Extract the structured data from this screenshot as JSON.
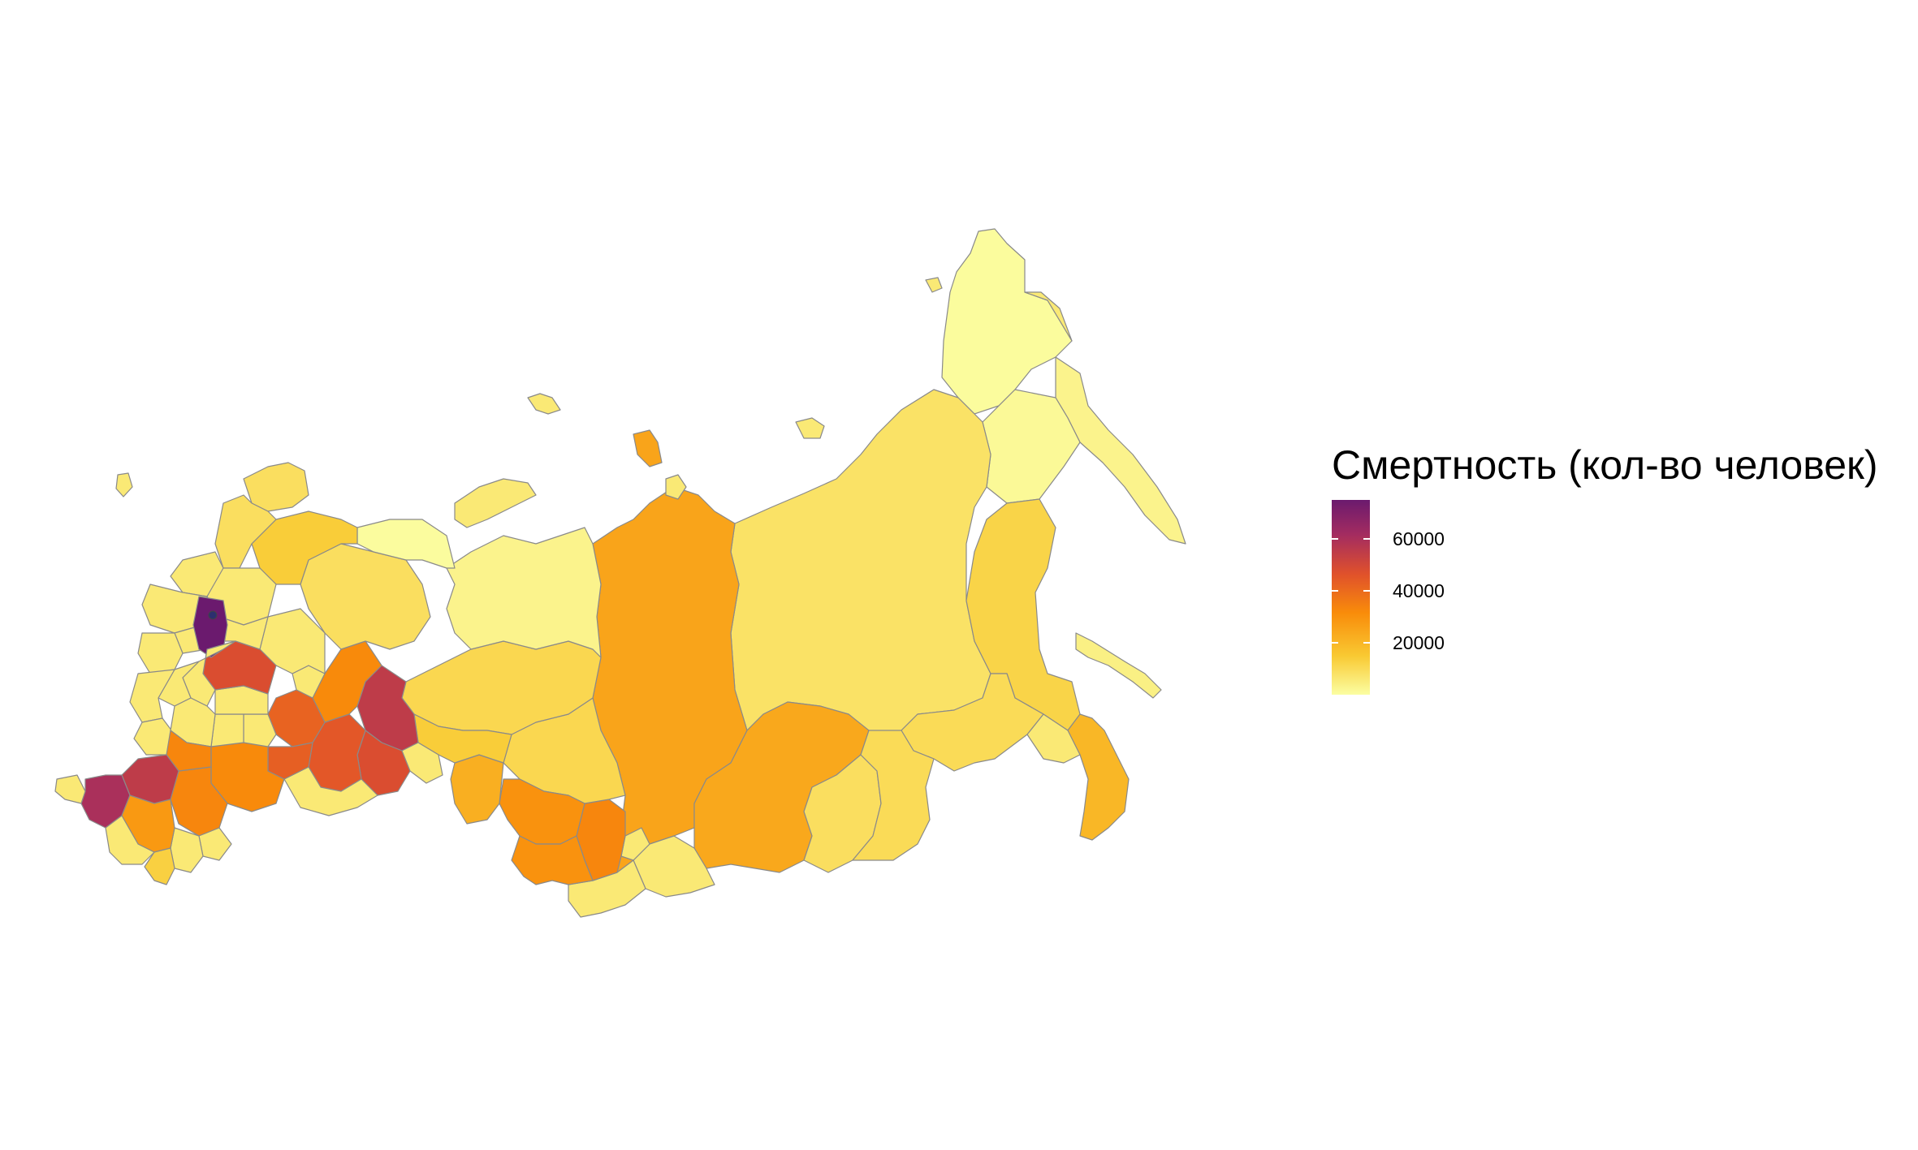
{
  "legend": {
    "title": "Смертность (кол-во человек)",
    "scale_min": 0,
    "scale_max": 75000,
    "ticks": [
      {
        "value": 20000,
        "label": "20000"
      },
      {
        "value": 40000,
        "label": "40000"
      },
      {
        "value": 60000,
        "label": "60000"
      }
    ],
    "colors": [
      "#fbfea2",
      "#f9c932",
      "#f98c0a",
      "#e0512b",
      "#a42c60",
      "#6b1a6e"
    ]
  },
  "map": {
    "subject": "Russian Federation regions choropleth",
    "missing_color": "#ffffff",
    "regions": [
      {
        "name": "chukotka",
        "value": 700
      },
      {
        "name": "kamchatka",
        "value": 3000
      },
      {
        "name": "magadan",
        "value": 1500
      },
      {
        "name": "sakha-yakutia",
        "value": 8000
      },
      {
        "name": "khabarovsk",
        "value": 12000
      },
      {
        "name": "amur",
        "value": 10000
      },
      {
        "name": "primorsky",
        "value": 20000
      },
      {
        "name": "sakhalin",
        "value": 4000
      },
      {
        "name": "krasnoyarsk",
        "value": 25000
      },
      {
        "name": "irkutsk",
        "value": 24000
      },
      {
        "name": "zabaykalsky",
        "value": 10000
      },
      {
        "name": "buryatia",
        "value": 9000
      },
      {
        "name": "taymyr-islands",
        "value": 25000
      },
      {
        "name": "yamalo-nenets",
        "value": 3000
      },
      {
        "name": "khanty-mansi",
        "value": 11000
      },
      {
        "name": "tomsk",
        "value": 11000
      },
      {
        "name": "novosibirsk",
        "value": 30000
      },
      {
        "name": "kemerovo",
        "value": 33000
      },
      {
        "name": "altai-krai",
        "value": 30000
      },
      {
        "name": "omsk",
        "value": 22000
      },
      {
        "name": "tyumen",
        "value": 14000
      },
      {
        "name": "sverdlovsk",
        "value": 55000
      },
      {
        "name": "chelyabinsk",
        "value": 48000
      },
      {
        "name": "bashkortostan",
        "value": 45000
      },
      {
        "name": "perm",
        "value": 32000
      },
      {
        "name": "komi",
        "value": 9000
      },
      {
        "name": "arkhangelsk",
        "value": 14000
      },
      {
        "name": "nenets",
        "value": 500
      },
      {
        "name": "moscow-oblast",
        "value": 80000
      },
      {
        "name": "moscow-city",
        "value": 120000
      },
      {
        "name": "saint-petersburg",
        "value": 60000
      },
      {
        "name": "krasnodar",
        "value": 60000
      },
      {
        "name": "rostov",
        "value": 55000
      },
      {
        "name": "volgograd",
        "value": 33000
      },
      {
        "name": "saratov",
        "value": 32000
      },
      {
        "name": "samara",
        "value": 43000
      },
      {
        "name": "tatarstan",
        "value": 42000
      },
      {
        "name": "nizhny-novgorod",
        "value": 48000
      },
      {
        "name": "dagestan",
        "value": 13000
      },
      {
        "name": "stavropol",
        "value": 28000
      },
      {
        "name": "voronezh",
        "value": 33000
      },
      {
        "name": "murmansk",
        "value": 9000
      },
      {
        "name": "karelia",
        "value": 9000
      }
    ]
  }
}
